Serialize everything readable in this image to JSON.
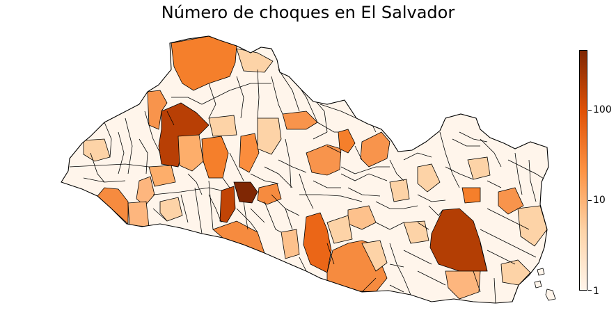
{
  "title": "Número de choques en El Salvador",
  "colorbar": {
    "scale": "log",
    "range": [
      1,
      450
    ],
    "ticks": [
      {
        "value": 1,
        "label": "1"
      },
      {
        "value": 10,
        "label": "10"
      },
      {
        "value": 100,
        "label": "100"
      }
    ],
    "colors": [
      "#fff5eb",
      "#fdd3a7",
      "#fd9243",
      "#df5005",
      "#7f2704"
    ]
  },
  "chart_data": {
    "type": "choropleth",
    "title": "Número de choques en El Salvador",
    "colorbar_ticks": [
      1,
      10,
      100
    ],
    "colormap": "Oranges",
    "scale": "log"
  }
}
